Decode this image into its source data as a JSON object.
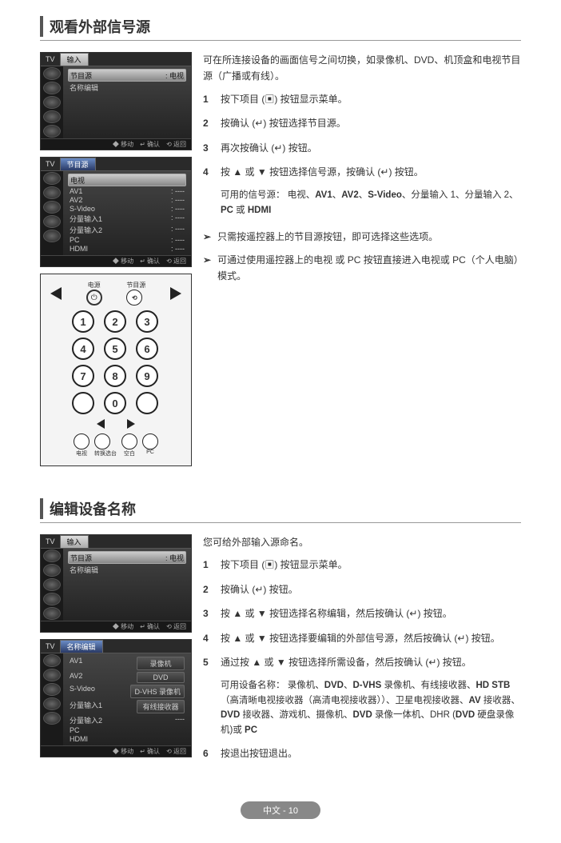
{
  "section1": {
    "title": "观看外部信号源",
    "intro": "可在所连接设备的画面信号之间切换，如录像机、DVD、机顶盒和电视节目源（广播或有线）。",
    "steps": [
      "按下项目 (▣) 按钮显示菜单。",
      "按确认 (↵) 按钮选择节目源。",
      "再次按确认 (↵) 按钮。",
      "按 ▲ 或 ▼ 按钮选择信号源，按确认 (↵) 按钮。"
    ],
    "signal_label": "可用的信号源：",
    "signal_list": "电视、AV1、AV2、S-Video、分量输入 1、分量输入 2、PC 或 HDMI",
    "notes": [
      "只需按遥控器上的节目源按钮，即可选择这些选项。",
      "可通过使用遥控器上的电视 或 PC 按钮直接进入电视或 PC（个人电脑）模式。"
    ]
  },
  "section2": {
    "title": "编辑设备名称",
    "intro": "您可给外部输入源命名。",
    "steps": [
      "按下项目 (▣) 按钮显示菜单。",
      "按确认 (↵) 按钮。",
      "按 ▲ 或 ▼ 按钮选择名称编辑，然后按确认 (↵) 按钮。",
      "按 ▲ 或 ▼ 按钮选择要编辑的外部信号源，然后按确认 (↵) 按钮。",
      "通过按 ▲ 或 ▼ 按钮选择所需设备，然后按确认 (↵) 按钮。"
    ],
    "device_label": "可用设备名称：",
    "device_list": "录像机、DVD、D-VHS 录像机、有线接收器、HD STB（高清晰电视接收器（高清电视接收器））、卫星电视接收器、AV 接收器、DVD 接收器、游戏机、摄像机、DVD 录像一体机、DHR (DVD 硬盘录像机)或 PC",
    "step6": "按退出按钮退出。"
  },
  "tv_menu1": {
    "tab": "TV",
    "header": "输入",
    "rows": [
      {
        "l": "节目源",
        "r": ": 电视",
        "sel": true
      },
      {
        "l": "名称编辑",
        "r": ""
      }
    ],
    "foot": [
      "◆ 移动",
      "↵ 确认",
      "⟲ 返回"
    ]
  },
  "tv_menu2": {
    "tab": "TV",
    "header": "节目源",
    "rows": [
      {
        "l": "电视",
        "r": "",
        "sel": true
      },
      {
        "l": "AV1",
        "r": ": ----"
      },
      {
        "l": "AV2",
        "r": ": ----"
      },
      {
        "l": "S-Video",
        "r": ": ----"
      },
      {
        "l": "分量输入1",
        "r": ": ----"
      },
      {
        "l": "分量输入2",
        "r": ": ----"
      },
      {
        "l": "PC",
        "r": ": ----"
      },
      {
        "l": "HDMI",
        "r": ": ----"
      }
    ],
    "foot": [
      "◆ 移动",
      "↵ 确认",
      "⟲ 返回"
    ]
  },
  "tv_menu3": {
    "tab": "TV",
    "header": "输入",
    "rows": [
      {
        "l": "节目源",
        "r": ": 电视",
        "sel": true
      },
      {
        "l": "名称编辑",
        "r": ""
      }
    ],
    "foot": [
      "◆ 移动",
      "↵ 确认",
      "⟲ 返回"
    ]
  },
  "tv_menu4": {
    "tab": "TV",
    "header": "名称编辑",
    "rows": [
      {
        "l": "AV1",
        "r": "录像机",
        "box": true
      },
      {
        "l": "AV2",
        "r": "DVD",
        "box": true
      },
      {
        "l": "S-Video",
        "r": "D-VHS 录像机",
        "box": true
      },
      {
        "l": "分量输入1",
        "r": "有线接收器",
        "box": true
      },
      {
        "l": "分量输入2",
        "r": "----"
      },
      {
        "l": "PC",
        "r": ""
      },
      {
        "l": "HDMI",
        "r": ""
      }
    ],
    "foot": [
      "◆ 移动",
      "↵ 确认",
      "⟲ 返回"
    ]
  },
  "remote": {
    "power_label": "电源",
    "src_label": "节目源",
    "numbers": [
      "1",
      "2",
      "3",
      "4",
      "5",
      "6",
      "7",
      "8",
      "9",
      "",
      "0",
      ""
    ],
    "bottom_labels": [
      "电视",
      "转换选台",
      "空白",
      "PC"
    ]
  },
  "footer": "中文 - 10",
  "bold_words": [
    "AV1",
    "AV2",
    "S-Video",
    "PC",
    "HDMI",
    "DVD",
    "D-VHS",
    "HD STB",
    "AV",
    "DHR (DVD"
  ]
}
